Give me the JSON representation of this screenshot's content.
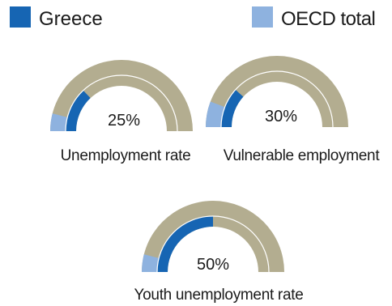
{
  "colors": {
    "greece": "#1665b3",
    "oecd": "#8eb2df",
    "track": "#b3ad90",
    "divider": "#ffffff"
  },
  "legend": {
    "greece": "Greece",
    "oecd": "OECD total"
  },
  "chart_data": {
    "type": "gauge",
    "scale": [
      0,
      50
    ],
    "series": [
      {
        "name": "Greece",
        "key": "greece"
      },
      {
        "name": "OECD total",
        "key": "oecd"
      }
    ],
    "gauges": [
      {
        "label": "Unemployment rate",
        "center_label": "25%",
        "max": 25,
        "greece": 6.5,
        "oecd": 2.0
      },
      {
        "label": "Vulnerable employment",
        "center_label": "30%",
        "max": 30,
        "greece": 7.0,
        "oecd": 3.5
      },
      {
        "label": "Youth unemployment rate",
        "center_label": "50%",
        "max": 50,
        "greece": 25.0,
        "oecd": 4.0
      }
    ]
  }
}
